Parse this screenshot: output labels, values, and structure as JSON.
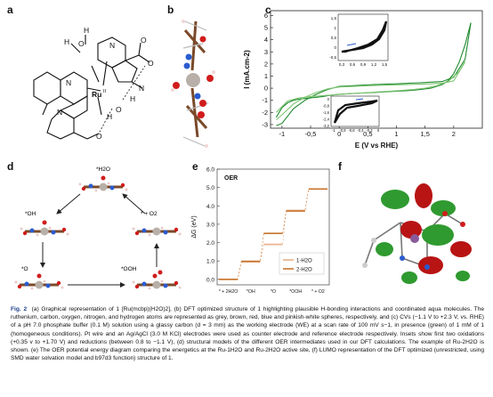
{
  "panels": {
    "a": {
      "label": "a",
      "atoms": [
        "H",
        "O",
        "H",
        "N",
        "Ru",
        "II",
        "N",
        "N",
        "N",
        "O",
        "O",
        "O",
        "O",
        "H",
        "H"
      ]
    },
    "b": {
      "label": "b"
    },
    "c": {
      "label": "c",
      "ylabel": "I (mA.cm-2)",
      "xlabel": "E (V vs RHE)",
      "xticks": [
        "-1",
        "-0,5",
        "0",
        "0,5",
        "1",
        "1,5",
        "2"
      ],
      "yticks": [
        "-3",
        "-2",
        "-1",
        "0",
        "1",
        "2",
        "3",
        "4",
        "5",
        "6"
      ],
      "inset1": {
        "yticks": [
          "1,5",
          "1",
          "0,5",
          "0",
          "-0,5"
        ],
        "xticks": [
          "0,3",
          "0,6",
          "0,9",
          "1,2",
          "1,5"
        ]
      },
      "inset2": {
        "yticks": [
          "0",
          "-0,8",
          "-1,6",
          "-2,4",
          "-3,2"
        ],
        "xticks": [
          "-1",
          "-0,8",
          "-0,6",
          "-0,4",
          "-0,2",
          "0"
        ]
      }
    },
    "d": {
      "label": "d",
      "states": [
        "*H2O",
        "*OH",
        "* + O2",
        "*O",
        "*OOH"
      ]
    },
    "e": {
      "label": "e",
      "title": "OER",
      "ylabel": "ΔG (eV)"
    },
    "f": {
      "label": "f"
    }
  },
  "chart_data": [
    {
      "type": "line",
      "title": "",
      "xlabel": "E (V vs RHE)",
      "ylabel": "I (mA.cm-2)",
      "xlim": [
        -1.2,
        2.5
      ],
      "ylim": [
        -3.3,
        6.4
      ],
      "series": [
        {
          "x": [
            -1.1,
            -1.0,
            -0.9,
            -0.8,
            -0.7,
            -0.6,
            -0.5,
            -0.4,
            -0.3,
            -0.2,
            -0.1,
            0.0,
            0.2,
            0.4,
            0.6,
            0.8,
            1.0,
            1.2,
            1.4,
            1.6,
            1.8,
            1.9,
            2.0,
            2.1,
            2.2,
            2.3
          ],
          "y": [
            -2.4,
            -1.6,
            -1.2,
            -1.0,
            -0.9,
            -0.85,
            -0.8,
            -0.75,
            -0.7,
            -0.62,
            -0.55,
            -0.5,
            -0.45,
            -0.4,
            -0.35,
            -0.3,
            -0.25,
            -0.2,
            -0.12,
            0.0,
            0.3,
            0.6,
            1.2,
            2.2,
            3.6,
            5.4
          ]
        },
        {
          "x": [
            2.3,
            2.2,
            2.0,
            1.8,
            1.6,
            1.4,
            1.2,
            1.0,
            0.8,
            0.6,
            0.4,
            0.2,
            0.0,
            -0.2,
            -0.4,
            -0.6,
            -0.8,
            -1.0,
            -1.1
          ],
          "y": [
            5.4,
            2.4,
            0.9,
            0.55,
            0.5,
            0.45,
            0.4,
            0.36,
            0.33,
            0.3,
            0.25,
            0.2,
            0.15,
            -0.1,
            -0.5,
            -1.0,
            -1.7,
            -2.9,
            -3.1
          ]
        },
        {
          "x": [
            -1.1,
            -0.9,
            -0.7,
            -0.5,
            -0.3,
            -0.1,
            0.1,
            0.3,
            0.5,
            0.7,
            0.9,
            1.1,
            1.3,
            1.5,
            1.7,
            1.9,
            2.1,
            2.2
          ],
          "y": [
            -2.0,
            -1.05,
            -0.8,
            -0.7,
            -0.62,
            -0.55,
            -0.48,
            -0.42,
            -0.37,
            -0.3,
            -0.24,
            -0.18,
            -0.1,
            0.0,
            0.2,
            0.55,
            1.4,
            2.2
          ]
        },
        {
          "x": [
            2.2,
            2.0,
            1.8,
            1.6,
            1.4,
            1.2,
            1.0,
            0.8,
            0.6,
            0.4,
            0.2,
            0.0,
            -0.2,
            -0.4,
            -0.6,
            -0.8,
            -1.0,
            -1.1
          ],
          "y": [
            2.2,
            0.6,
            0.42,
            0.36,
            0.33,
            0.3,
            0.28,
            0.25,
            0.22,
            0.18,
            0.14,
            0.1,
            -0.05,
            -0.35,
            -0.75,
            -1.3,
            -2.2,
            -2.6
          ]
        }
      ]
    },
    {
      "type": "line",
      "title": "OER",
      "xlabel": "",
      "ylabel": "ΔG (eV)",
      "categories": [
        "* + 2H2O",
        "*OH",
        "*O",
        "*OOH",
        "* + O2"
      ],
      "yticks": [
        0.0,
        1.0,
        2.0,
        3.0,
        4.0,
        5.0,
        6.0
      ],
      "ylim": [
        -0.3,
        6.0
      ],
      "series": [
        {
          "name": "1-H2O",
          "values": [
            0.0,
            0.95,
            1.9,
            3.75,
            4.92
          ]
        },
        {
          "name": "2-H2O",
          "values": [
            0.0,
            0.98,
            2.5,
            3.72,
            4.92
          ]
        }
      ]
    }
  ],
  "caption": {
    "fig": "Fig. 2",
    "text": "(a) Graphical representation of 1 [Ru(mcbp)(H2O)2], (b) DFT optimized structure of 1 highlighting plausible H-bonding interactions and coordinated aqua molecules. The ruthenium, carbon, oxygen, nitrogen, and hydrogen atoms are represented as grey, brown, red, blue and pinkish-white spheres, respectively, and (c) CVs (−1.1 V to +2.3 V, vs. RHE) of a pH 7.0 phosphate buffer (0.1 M) solution using a glassy carbon (d = 3 mm) as the working electrode (WE) at a scan rate of 100 mV s−1, in presence (green) of 1 mM of 1 (homogeneous conditions). Pt wire and an Ag/AgCl (3.0 M KCl) electrodes were used as counter electrode and reference electrode respectively. Insets show first two oxidations (+0.35 v to +1.70 V) and reductions (between 0.8 to −1.1 V), (d) structural models of the different OER intermediates used in our DFT calculations. The example of Ru-2H2O is shown. (e) The OER potential energy diagram comparing the energetics at the Ru-1H2O and Ru-2H2O active site, (f) LUMO representation of the DFT optimized (unrestricted, using SMD water solvation model and b97d3 function) structure of 1."
  },
  "colors": {
    "green1": "#1f8a2e",
    "green2": "#7cc46f",
    "orange1": "#c8752e",
    "orange2": "#e8b089",
    "red": "#d11c1c",
    "blue": "#2a5bd0",
    "brown": "#7a4a2a"
  }
}
